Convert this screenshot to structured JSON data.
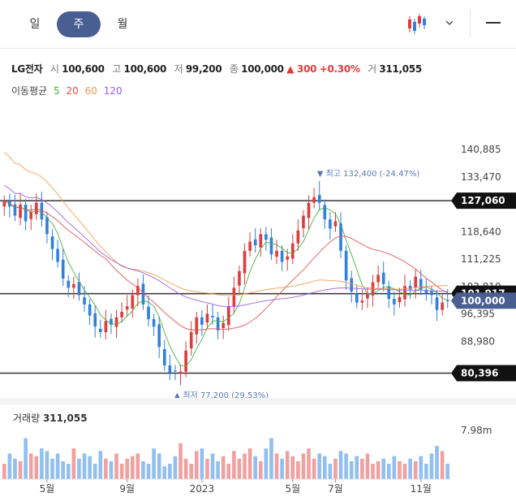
{
  "tabs": [
    {
      "label": "일",
      "active": false
    },
    {
      "label": "주",
      "active": true
    },
    {
      "label": "월",
      "active": false
    }
  ],
  "toolbar": {
    "chart_type_icon": "candlestick-icon",
    "dropdown_icon": "chevron-down-icon",
    "menu_icon": "hamburger-icon"
  },
  "quote": {
    "name": "LG전자",
    "open_label": "시",
    "open": "100,600",
    "high_label": "고",
    "high": "100,600",
    "low_label": "저",
    "low": "99,200",
    "close_label": "종",
    "close": "100,000",
    "change": "▲ 300",
    "change_pct": "+0.30%",
    "volume_label": "거",
    "volume": "311,055"
  },
  "moving_average": {
    "label": "이동평균",
    "periods": [
      {
        "label": "5",
        "color": "#3cae3c"
      },
      {
        "label": "20",
        "color": "#e24b4b"
      },
      {
        "label": "60",
        "color": "#f19a4b"
      },
      {
        "label": "120",
        "color": "#9b59e0"
      }
    ]
  },
  "colors": {
    "up": "#e03b3b",
    "down": "#2f80e0",
    "current_badge": "#4a5f91"
  },
  "chart_data": {
    "type": "candlestick",
    "price_axis_ticks": [
      "140,885",
      "133,470",
      "118,640",
      "111,225",
      "103,810",
      "96,395",
      "88,980"
    ],
    "x_ticks": [
      "5월",
      "9월",
      "2023",
      "5월",
      "7월",
      "11월"
    ],
    "ylim": [
      77000,
      144000
    ],
    "horizontal_lines": [
      {
        "value": 127060,
        "label": "127,060"
      },
      {
        "value": 101917,
        "label": "101,917"
      },
      {
        "value": 80396,
        "label": "80,396"
      }
    ],
    "current_price": {
      "value": 100000,
      "label": "100,000"
    },
    "max_annotation": {
      "value": 132400,
      "label": "▼ 최고 132,400 (-24.47%)"
    },
    "min_annotation": {
      "value": 77200,
      "label": "▲ 최저 77,200 (29.53%)"
    },
    "closes": [
      127000,
      125500,
      123000,
      126000,
      121500,
      124000,
      126500,
      122000,
      118000,
      114000,
      110500,
      106000,
      103500,
      104500,
      101500,
      99000,
      96000,
      93000,
      91500,
      94500,
      93500,
      95500,
      97000,
      98500,
      101500,
      104000,
      99000,
      95000,
      93000,
      87500,
      82500,
      80500,
      81000,
      80800,
      86500,
      91500,
      95500,
      93500,
      96500,
      95500,
      92000,
      94000,
      98500,
      103500,
      108000,
      113500,
      116000,
      115000,
      118000,
      116500,
      112500,
      113500,
      110500,
      112000,
      115500,
      119000,
      123000,
      126500,
      128000,
      126500,
      122000,
      119500,
      121500,
      113500,
      105500,
      102500,
      99500,
      100000,
      102000,
      105000,
      107000,
      104500,
      100500,
      99000,
      101000,
      104000,
      103000,
      106500,
      103000,
      102000,
      101500,
      97500,
      99500,
      100000
    ],
    "volume_ylabel": "7.98m",
    "volume_title": "거래량",
    "volume_value": "311,055",
    "volumes": [
      0.3,
      0.5,
      0.4,
      0.35,
      0.8,
      0.5,
      0.45,
      0.6,
      0.55,
      0.4,
      0.5,
      0.35,
      0.3,
      0.6,
      0.4,
      0.5,
      0.45,
      0.3,
      0.55,
      0.4,
      0.35,
      0.5,
      0.3,
      0.4,
      0.45,
      0.5,
      0.35,
      0.3,
      0.6,
      0.5,
      0.25,
      0.3,
      0.45,
      0.7,
      0.4,
      0.3,
      0.55,
      0.6,
      0.4,
      0.5,
      0.35,
      0.45,
      0.3,
      0.55,
      0.4,
      0.5,
      0.6,
      0.45,
      0.35,
      0.6,
      0.8,
      0.5,
      0.4,
      0.55,
      0.45,
      0.35,
      0.5,
      0.6,
      0.4,
      0.5,
      0.45,
      0.3,
      0.4,
      0.55,
      0.5,
      0.35,
      0.45,
      0.4,
      0.5,
      0.3,
      0.35,
      0.4,
      0.3,
      0.45,
      0.35,
      0.3,
      0.4,
      0.35,
      0.45,
      0.3,
      0.5,
      0.65,
      0.55,
      0.3
    ]
  }
}
